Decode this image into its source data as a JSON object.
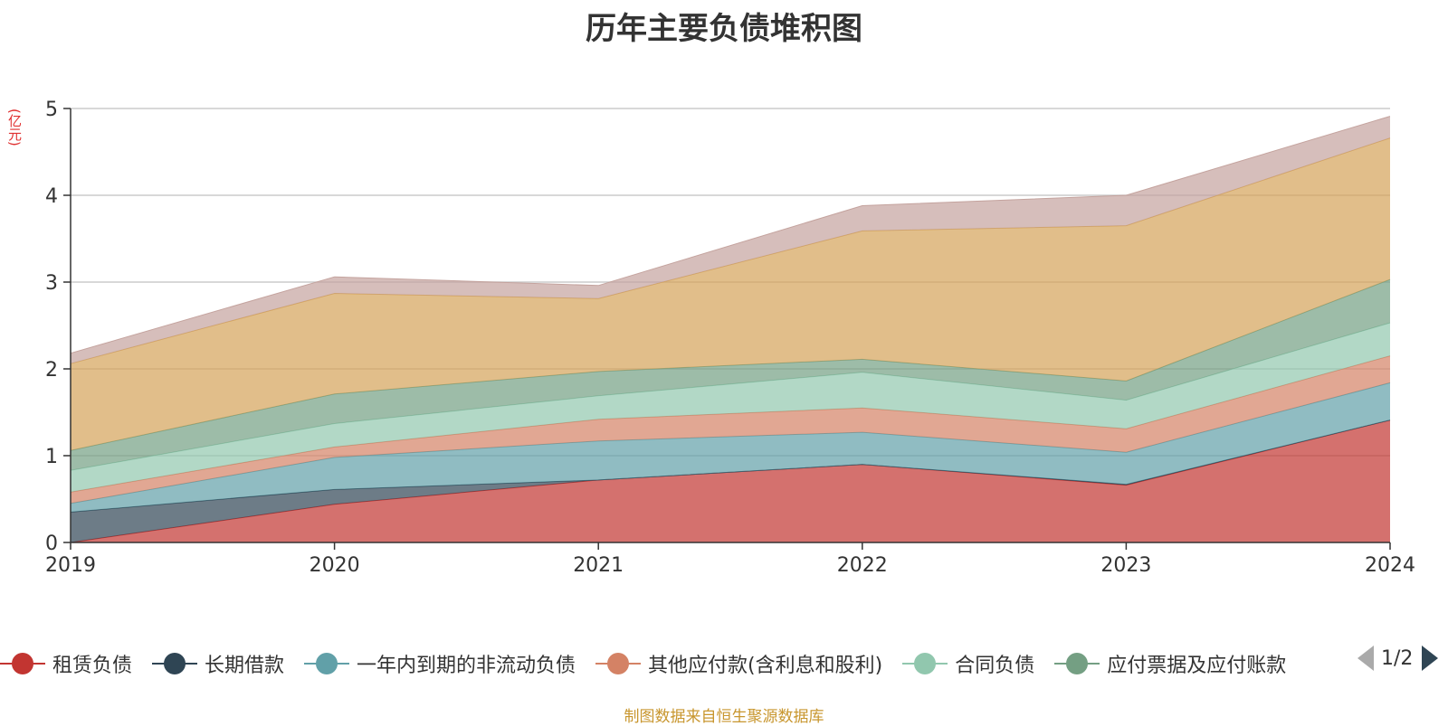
{
  "title": "历年主要负债堆积图",
  "unit_label": "(亿元)",
  "source_note": "制图数据来自恒生聚源数据库",
  "pager": {
    "text": "1/2"
  },
  "legend": [
    {
      "label": "租赁负债",
      "color": "#c23531"
    },
    {
      "label": "长期借款",
      "color": "#2f4554"
    },
    {
      "label": "一年内到期的非流动负债",
      "color": "#61a0a8"
    },
    {
      "label": "其他应付款(含利息和股利)",
      "color": "#d48265"
    },
    {
      "label": "合同负债",
      "color": "#91c7ae"
    },
    {
      "label": "应付票据及应付账款",
      "color": "#749f83"
    }
  ],
  "chart_data": {
    "type": "area",
    "stacked": true,
    "title": "历年主要负债堆积图",
    "ylabel": "(亿元)",
    "x": [
      "2019",
      "2020",
      "2021",
      "2022",
      "2023",
      "2024"
    ],
    "ylim": [
      0,
      5
    ],
    "yticks": [
      0,
      1,
      2,
      3,
      4,
      5
    ],
    "grid": true,
    "legend_position": "bottom",
    "series": [
      {
        "name": "租赁负债",
        "color": "#c23531",
        "values": [
          0.0,
          0.44,
          0.72,
          0.9,
          0.66,
          1.41
        ]
      },
      {
        "name": "长期借款",
        "color": "#2f4554",
        "values": [
          0.35,
          0.17,
          0.0,
          0.0,
          0.01,
          0.0
        ]
      },
      {
        "name": "一年内到期的非流动负债",
        "color": "#61a0a8",
        "values": [
          0.1,
          0.37,
          0.45,
          0.37,
          0.37,
          0.43
        ]
      },
      {
        "name": "其他应付款(含利息和股利)",
        "color": "#d48265",
        "values": [
          0.13,
          0.12,
          0.25,
          0.28,
          0.27,
          0.31
        ]
      },
      {
        "name": "合同负债",
        "color": "#91c7ae",
        "values": [
          0.25,
          0.27,
          0.27,
          0.41,
          0.33,
          0.38
        ]
      },
      {
        "name": "应付票据及应付账款",
        "color": "#749f83",
        "values": [
          0.23,
          0.34,
          0.28,
          0.15,
          0.22,
          0.5
        ]
      },
      {
        "name": "",
        "color": "#d4a358",
        "values": [
          1.0,
          1.16,
          0.84,
          1.48,
          1.79,
          1.63
        ]
      },
      {
        "name": "",
        "color": "#c4a39e",
        "values": [
          0.12,
          0.19,
          0.15,
          0.29,
          0.35,
          0.25
        ]
      }
    ]
  }
}
